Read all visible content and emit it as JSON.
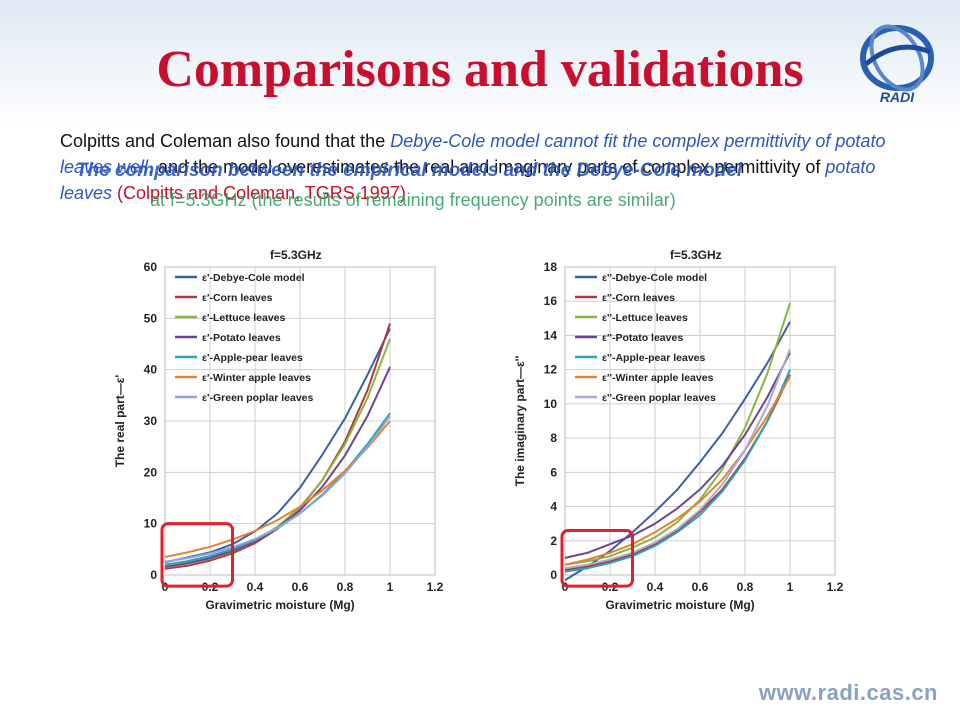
{
  "slide": {
    "title": "Comparisons and validations",
    "logo_text": "RADI",
    "website": "www.radi.cas.cn",
    "paragraph": {
      "p1": "Colpitts and Coleman  also found that the ",
      "p2": "Debye-Cole model cannot fit the complex permittivity of potato leaves well",
      "p3": ", and the model overestimates the real and imaginary parts of complex permittivity of ",
      "p4": "potato leaves",
      "p5": " (Colpitts and Coleman, TGRS,1997)"
    },
    "overlay_heading": "The comparison between the empirical models and the Debye-Cole model",
    "overlay_subtext": "at f=5.3GHz (the results of remaining frequency points are similar)"
  },
  "colors": {
    "title": "#c8102e",
    "accent_blue": "#2b55c0",
    "highlight_box": "#e0202a"
  },
  "chart_data": [
    {
      "type": "line",
      "title": "f=5.3GHz",
      "xlabel": "Gravimetric moisture (Mg)",
      "ylabel": "The real part—ε'",
      "xlim": [
        0,
        1.2
      ],
      "ylim": [
        0,
        60
      ],
      "xticks": [
        "0",
        "0.2",
        "0.4",
        "0.6",
        "0.8",
        "1",
        "1.2"
      ],
      "yticks": [
        "0",
        "10",
        "20",
        "30",
        "40",
        "50",
        "60"
      ],
      "grid": true,
      "legend_position": "top-left",
      "highlight_region": {
        "x": [
          0,
          0.3
        ],
        "y": [
          -1,
          10
        ]
      },
      "series": [
        {
          "name": "ε'-Debye-Cole model",
          "color": "#3b5fa8",
          "x": [
            0,
            0.1,
            0.2,
            0.3,
            0.4,
            0.5,
            0.6,
            0.7,
            0.8,
            0.9,
            1.0
          ],
          "y": [
            2.5,
            3.4,
            4.4,
            6.0,
            8.5,
            12.0,
            17.0,
            23.5,
            30.5,
            39.0,
            48.0
          ]
        },
        {
          "name": "ε'-Corn leaves",
          "color": "#b03a3a",
          "x": [
            0,
            0.1,
            0.2,
            0.3,
            0.4,
            0.5,
            0.6,
            0.7,
            0.8,
            0.9,
            1.0
          ],
          "y": [
            1.2,
            1.8,
            2.8,
            4.2,
            6.2,
            9.0,
            13.0,
            18.5,
            26.0,
            36.0,
            49.0
          ]
        },
        {
          "name": "ε'-Lettuce leaves",
          "color": "#8cb53e",
          "x": [
            0,
            0.1,
            0.2,
            0.3,
            0.4,
            0.5,
            0.6,
            0.7,
            0.8,
            0.9,
            1.0
          ],
          "y": [
            1.5,
            2.2,
            3.2,
            4.6,
            6.6,
            9.4,
            13.2,
            18.5,
            25.5,
            34.5,
            46.0
          ]
        },
        {
          "name": "ε'-Potato leaves",
          "color": "#6a4596",
          "x": [
            0,
            0.1,
            0.2,
            0.3,
            0.4,
            0.5,
            0.6,
            0.7,
            0.8,
            0.9,
            1.0
          ],
          "y": [
            1.6,
            2.3,
            3.3,
            4.7,
            6.6,
            9.2,
            12.6,
            17.2,
            23.3,
            31.0,
            40.5
          ]
        },
        {
          "name": "ε'-Apple-pear leaves",
          "color": "#2ea3b8",
          "x": [
            0,
            0.1,
            0.2,
            0.3,
            0.4,
            0.5,
            0.6,
            0.7,
            0.8,
            0.9,
            1.0
          ],
          "y": [
            2.0,
            2.7,
            3.7,
            5.0,
            6.8,
            9.1,
            12.0,
            15.7,
            20.2,
            25.5,
            31.5
          ]
        },
        {
          "name": "ε'-Winter apple leaves",
          "color": "#e4822d",
          "x": [
            0,
            0.1,
            0.2,
            0.3,
            0.4,
            0.5,
            0.6,
            0.7,
            0.8,
            0.9,
            1.0
          ],
          "y": [
            3.5,
            4.4,
            5.5,
            6.9,
            8.6,
            10.7,
            13.3,
            16.5,
            20.3,
            24.8,
            30.0
          ]
        },
        {
          "name": "ε'-Green poplar leaves",
          "color": "#8aa6d8",
          "x": [
            0,
            0.1,
            0.2,
            0.3,
            0.4,
            0.5,
            0.6,
            0.7,
            0.8,
            0.9,
            1.0
          ],
          "y": [
            2.6,
            3.3,
            4.2,
            5.4,
            7.0,
            9.2,
            12.0,
            15.5,
            19.8,
            25.0,
            31.0
          ]
        }
      ]
    },
    {
      "type": "line",
      "title": "f=5.3GHz",
      "xlabel": "Gravimetric moisture (Mg)",
      "ylabel": "The imaginary part—ε''",
      "xlim": [
        0,
        1.2
      ],
      "ylim": [
        0,
        18
      ],
      "xticks": [
        "0",
        "0.2",
        "0.4",
        "0.6",
        "0.8",
        "1",
        "1.2"
      ],
      "yticks": [
        "0",
        "2",
        "4",
        "6",
        "8",
        "10",
        "12",
        "14",
        "16",
        "18"
      ],
      "grid": true,
      "legend_position": "top-left",
      "highlight_region": {
        "x": [
          0,
          0.3
        ],
        "y": [
          -0.3,
          2.6
        ]
      },
      "series": [
        {
          "name": "ε''-Debye-Cole model",
          "color": "#3b5fa8",
          "x": [
            0,
            0.1,
            0.2,
            0.3,
            0.4,
            0.5,
            0.6,
            0.7,
            0.8,
            0.9,
            1.0
          ],
          "y": [
            -0.3,
            0.5,
            1.4,
            2.5,
            3.7,
            5.0,
            6.6,
            8.3,
            10.3,
            12.4,
            14.8
          ]
        },
        {
          "name": "ε''-Corn leaves",
          "color": "#b03a3a",
          "x": [
            0,
            0.1,
            0.2,
            0.3,
            0.4,
            0.5,
            0.6,
            0.7,
            0.8,
            0.9,
            1.0
          ],
          "y": [
            0.3,
            0.5,
            0.8,
            1.2,
            1.8,
            2.6,
            3.7,
            5.0,
            6.8,
            9.0,
            11.7
          ]
        },
        {
          "name": "ε''-Lettuce leaves",
          "color": "#8cb53e",
          "x": [
            0,
            0.1,
            0.2,
            0.3,
            0.4,
            0.5,
            0.6,
            0.7,
            0.8,
            0.9,
            1.0
          ],
          "y": [
            0.6,
            0.8,
            1.1,
            1.6,
            2.2,
            3.1,
            4.4,
            6.2,
            8.6,
            11.8,
            15.9
          ]
        },
        {
          "name": "ε''-Potato leaves",
          "color": "#6a4596",
          "x": [
            0,
            0.1,
            0.2,
            0.3,
            0.4,
            0.5,
            0.6,
            0.7,
            0.8,
            0.9,
            1.0
          ],
          "y": [
            1.0,
            1.3,
            1.8,
            2.3,
            3.0,
            3.9,
            5.0,
            6.4,
            8.2,
            10.4,
            13.0
          ]
        },
        {
          "name": "ε''-Apple-pear leaves",
          "color": "#2ea3b8",
          "x": [
            0,
            0.1,
            0.2,
            0.3,
            0.4,
            0.5,
            0.6,
            0.7,
            0.8,
            0.9,
            1.0
          ],
          "y": [
            0.2,
            0.4,
            0.7,
            1.1,
            1.7,
            2.5,
            3.5,
            4.9,
            6.7,
            9.0,
            12.0
          ]
        },
        {
          "name": "ε''-Winter apple leaves",
          "color": "#e4822d",
          "x": [
            0,
            0.1,
            0.2,
            0.3,
            0.4,
            0.5,
            0.6,
            0.7,
            0.8,
            0.9,
            1.0
          ],
          "y": [
            0.6,
            0.9,
            1.3,
            1.8,
            2.5,
            3.3,
            4.3,
            5.6,
            7.3,
            9.3,
            11.6
          ]
        },
        {
          "name": "ε''-Green poplar leaves",
          "color": "#a9a9d6",
          "x": [
            0,
            0.1,
            0.2,
            0.3,
            0.4,
            0.5,
            0.6,
            0.7,
            0.8,
            0.9,
            1.0
          ],
          "y": [
            0.4,
            0.6,
            0.9,
            1.3,
            1.9,
            2.7,
            3.8,
            5.3,
            7.3,
            9.9,
            13.2
          ]
        }
      ]
    }
  ]
}
